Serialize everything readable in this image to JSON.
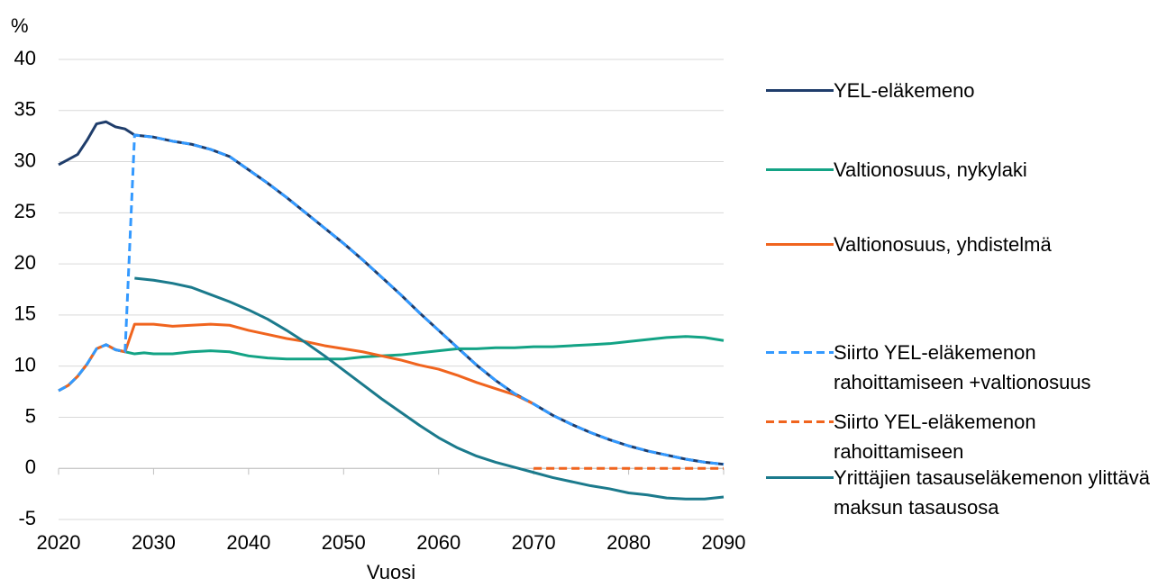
{
  "chart_data": {
    "type": "line",
    "y_label": "%",
    "x_label": "Vuosi",
    "x": [
      2020,
      2021,
      2022,
      2023,
      2024,
      2025,
      2026,
      2027,
      2028,
      2029,
      2030,
      2032,
      2034,
      2036,
      2038,
      2040,
      2042,
      2044,
      2046,
      2048,
      2050,
      2052,
      2054,
      2056,
      2058,
      2060,
      2062,
      2064,
      2066,
      2068,
      2070,
      2072,
      2074,
      2076,
      2078,
      2080,
      2082,
      2084,
      2086,
      2088,
      2090
    ],
    "xlim": [
      2020,
      2090
    ],
    "xticks": [
      2020,
      2030,
      2040,
      2050,
      2060,
      2070,
      2080,
      2090
    ],
    "ylim": [
      -5,
      40
    ],
    "yticks": [
      -5,
      0,
      5,
      10,
      15,
      20,
      25,
      30,
      35,
      40
    ],
    "grid": true,
    "series": [
      {
        "name": "YEL-eläkemeno",
        "color": "#1f3d6b",
        "dashed": false,
        "values": [
          29.7,
          30.2,
          30.7,
          32.1,
          33.7,
          33.9,
          33.4,
          33.2,
          32.6,
          32.5,
          32.4,
          32.0,
          31.7,
          31.2,
          30.5,
          29.2,
          27.9,
          26.5,
          25.0,
          23.5,
          22.0,
          20.4,
          18.7,
          17.0,
          15.2,
          13.5,
          11.8,
          10.1,
          8.6,
          7.3,
          6.3,
          5.2,
          4.3,
          3.5,
          2.8,
          2.2,
          1.7,
          1.3,
          0.9,
          0.6,
          0.4
        ]
      },
      {
        "name": "Valtionosuus, nykylaki",
        "color": "#13a385",
        "dashed": false,
        "values": [
          7.6,
          8.1,
          9.0,
          10.2,
          11.7,
          12.1,
          11.6,
          11.4,
          11.2,
          11.3,
          11.2,
          11.2,
          11.4,
          11.5,
          11.4,
          11.0,
          10.8,
          10.7,
          10.7,
          10.7,
          10.7,
          10.9,
          11.0,
          11.1,
          11.3,
          11.5,
          11.7,
          11.7,
          11.8,
          11.8,
          11.9,
          11.9,
          12.0,
          12.1,
          12.2,
          12.4,
          12.6,
          12.8,
          12.9,
          12.8,
          12.5
        ]
      },
      {
        "name": "Valtionosuus, yhdistelmä",
        "color": "#f0641e",
        "dashed": false,
        "values": [
          7.6,
          8.1,
          9.0,
          10.2,
          11.7,
          12.1,
          11.6,
          11.4,
          14.1,
          14.1,
          14.1,
          13.9,
          14.0,
          14.1,
          14.0,
          13.5,
          13.1,
          12.7,
          12.4,
          12.0,
          11.7,
          11.4,
          11.0,
          10.6,
          10.1,
          9.7,
          9.1,
          8.4,
          7.8,
          7.2,
          6.3,
          null,
          null,
          null,
          null,
          null,
          null,
          null,
          null,
          null,
          null
        ]
      },
      {
        "name": "Yrittäjien tasauseläkemenon ylittävä maksun tasausosa",
        "color": "#1b7a8c",
        "dashed": false,
        "values": [
          null,
          null,
          null,
          null,
          null,
          null,
          null,
          null,
          18.6,
          18.5,
          18.4,
          18.1,
          17.7,
          17.0,
          16.3,
          15.5,
          14.6,
          13.5,
          12.3,
          11.0,
          9.6,
          8.2,
          6.8,
          5.5,
          4.2,
          3.0,
          2.0,
          1.2,
          0.6,
          0.1,
          -0.4,
          -0.9,
          -1.3,
          -1.7,
          -2.0,
          -2.4,
          -2.6,
          -2.9,
          -3.0,
          -3.0,
          -2.8
        ]
      },
      {
        "name": "Siirto YEL-eläkemenon rahoittamiseen +valtionosuus",
        "color": "#3399ff",
        "dashed": true,
        "values": [
          7.6,
          8.1,
          9.0,
          10.2,
          11.7,
          12.1,
          11.6,
          11.4,
          32.6,
          32.5,
          32.4,
          32.0,
          31.7,
          31.2,
          30.5,
          29.2,
          27.9,
          26.5,
          25.0,
          23.5,
          22.0,
          20.4,
          18.7,
          17.0,
          15.2,
          13.5,
          11.8,
          10.1,
          8.6,
          7.3,
          6.3,
          5.2,
          4.3,
          3.5,
          2.8,
          2.2,
          1.7,
          1.3,
          0.9,
          0.6,
          0.4
        ]
      },
      {
        "name": "Siirto YEL-eläkemenon rahoittamiseen",
        "color": "#f0641e",
        "dashed": true,
        "values": [
          null,
          null,
          null,
          null,
          null,
          null,
          null,
          null,
          null,
          null,
          null,
          null,
          null,
          null,
          null,
          null,
          null,
          null,
          null,
          null,
          null,
          null,
          null,
          null,
          null,
          null,
          null,
          null,
          null,
          null,
          0,
          0,
          0,
          0,
          0,
          0,
          0,
          0,
          0,
          0,
          0
        ]
      }
    ],
    "legend_order": [
      0,
      1,
      2,
      4,
      5,
      3
    ]
  }
}
